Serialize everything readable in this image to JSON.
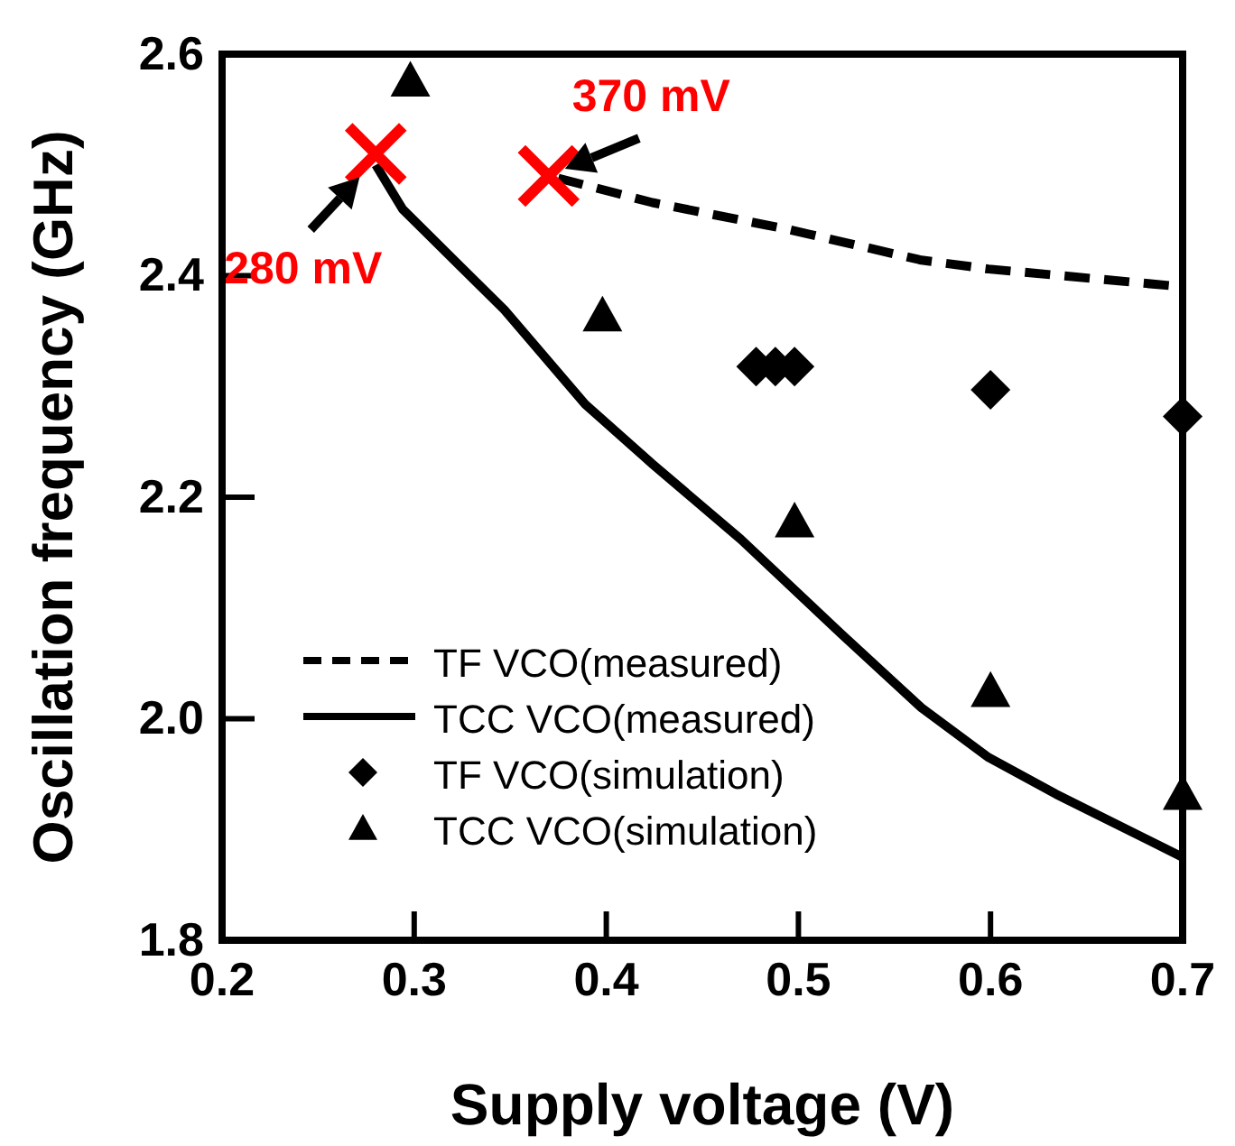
{
  "chart_data": {
    "type": "line",
    "xlabel": "Supply voltage (V)",
    "ylabel": "Oscillation frequency (GHz)",
    "xlim": [
      0.2,
      0.7
    ],
    "xticks": [
      0.2,
      0.3,
      0.4,
      0.5,
      0.6,
      0.7
    ],
    "ylim": [
      1.8,
      2.6
    ],
    "yticks": [
      1.8,
      {
        "value": 2.0,
        "label": "2.0"
      },
      2.2,
      2.4,
      2.6
    ],
    "grid": false,
    "legend": "bottom left",
    "series": [
      {
        "name": "TF VCO(measured)",
        "color": "#000000",
        "line_style": "dashed",
        "marker": "none",
        "x": [
          0.375,
          0.424,
          0.494,
          0.564,
          0.599,
          0.7
        ],
        "values": [
          2.488,
          2.466,
          2.442,
          2.414,
          2.406,
          2.39
        ]
      },
      {
        "name": "TCC VCO(measured)",
        "color": "#000000",
        "line_style": "solid",
        "marker": "none",
        "x": [
          0.28,
          0.294,
          0.347,
          0.389,
          0.424,
          0.47,
          0.522,
          0.564,
          0.599,
          0.634,
          0.7
        ],
        "values": [
          2.5,
          2.46,
          2.369,
          2.284,
          2.23,
          2.162,
          2.077,
          2.01,
          1.965,
          1.932,
          1.875
        ]
      },
      {
        "name": "TF VCO(simulation)",
        "type": "scatter",
        "color": "#000000",
        "marker": "diamond",
        "x": [
          0.478,
          0.488,
          0.498,
          0.6,
          0.7
        ],
        "values": [
          2.318,
          2.318,
          2.318,
          2.297,
          2.273
        ]
      },
      {
        "name": "TCC VCO(simulation)",
        "type": "scatter",
        "color": "#000000",
        "marker": "triangle",
        "x": [
          0.298,
          0.398,
          0.498,
          0.6,
          0.7
        ],
        "values": [
          2.576,
          2.364,
          2.178,
          2.025,
          1.932
        ]
      },
      {
        "type": "scatter",
        "color": "#ff0000",
        "marker": "cross",
        "x": [
          0.28,
          0.37
        ],
        "values": [
          2.51,
          2.49
        ]
      }
    ],
    "annotations": [
      {
        "text": "280 mV",
        "x": 0.28,
        "y": 2.51
      },
      {
        "text": "370 mV",
        "x": 0.37,
        "y": 2.49
      }
    ]
  }
}
